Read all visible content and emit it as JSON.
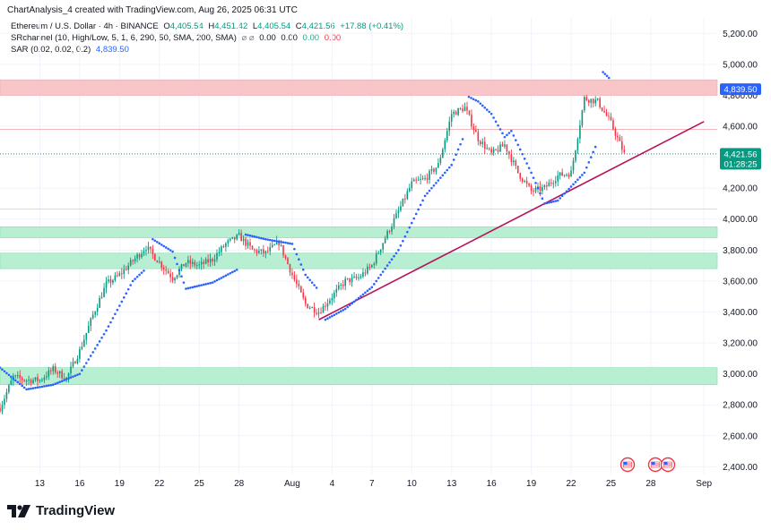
{
  "header": {
    "credit": "ChartAnalysis_4 created with TradingView.com, Aug 26, 2025 06:31 UTC",
    "symbol": "Ethereum / U.S. Dollar · 4h · BINANCE",
    "ohlc": {
      "o_label": "O",
      "o_value": "4,405.54",
      "h_label": "H",
      "h_value": "4,451.42",
      "l_label": "L",
      "l_value": "4,405.54",
      "c_label": "C",
      "c_value": "4,421.56",
      "change": "+17.88 (+0.41%)"
    },
    "indicators": [
      {
        "name": "SRchannel (10, High/Low, 5, 1, 6, 290, 50, SMA, 200, SMA)",
        "icon": "⌀ ⌀",
        "values": [
          "0.00",
          "0.00",
          "0.00",
          "0.00"
        ],
        "colors": [
          "#131722",
          "#131722",
          "#22ab94",
          "#f23645"
        ]
      },
      {
        "name": "SAR (0.02, 0.02, 0.2)",
        "icon": "",
        "values": [
          "4,839.50"
        ],
        "colors": [
          "#2962ff"
        ]
      }
    ]
  },
  "colors": {
    "up": "#089981",
    "down": "#f23645",
    "sar": "#2962ff",
    "trendline": "#b5145b",
    "resistance_zone": "#f8c6c8",
    "support_zone": "#b8efd3"
  },
  "price_tags": [
    {
      "value": 4839.5,
      "label": "4,839.50",
      "color": "#2962ff"
    },
    {
      "value": 4421.56,
      "label": "4,421.56",
      "sub": "01:28:25",
      "color": "#089981"
    }
  ],
  "logo": {
    "text": "TradingView"
  },
  "chart_data": {
    "type": "candlestick",
    "title": "Ethereum / U.S. Dollar · 4h · BINANCE",
    "ylim": [
      2350,
      5300
    ],
    "y_ticks": [
      {
        "value": 2400,
        "label": "2,400.00"
      },
      {
        "value": 2600,
        "label": "2,600.00"
      },
      {
        "value": 2800,
        "label": "2,800.00"
      },
      {
        "value": 3000,
        "label": "3,000.00"
      },
      {
        "value": 3200,
        "label": "3,200.00"
      },
      {
        "value": 3400,
        "label": "3,400.00"
      },
      {
        "value": 3600,
        "label": "3,600.00"
      },
      {
        "value": 3800,
        "label": "3,800.00"
      },
      {
        "value": 4000,
        "label": "4,000.00"
      },
      {
        "value": 4200,
        "label": "4,200.00"
      },
      {
        "value": 4400,
        "label": "4,400.00"
      },
      {
        "value": 4600,
        "label": "4,600.00"
      },
      {
        "value": 4800,
        "label": "4,800.00"
      },
      {
        "value": 5000,
        "label": "5,000.00"
      },
      {
        "value": 5200,
        "label": "5,200.00"
      }
    ],
    "x_range": [
      "2025-07-10",
      "2025-09-02"
    ],
    "x_ticks": [
      {
        "date": "2025-07-13",
        "label": "13"
      },
      {
        "date": "2025-07-16",
        "label": "16"
      },
      {
        "date": "2025-07-19",
        "label": "19"
      },
      {
        "date": "2025-07-22",
        "label": "22"
      },
      {
        "date": "2025-07-25",
        "label": "25"
      },
      {
        "date": "2025-07-28",
        "label": "28"
      },
      {
        "date": "2025-08-01",
        "label": "Aug"
      },
      {
        "date": "2025-08-04",
        "label": "4"
      },
      {
        "date": "2025-08-07",
        "label": "7"
      },
      {
        "date": "2025-08-10",
        "label": "10"
      },
      {
        "date": "2025-08-13",
        "label": "13"
      },
      {
        "date": "2025-08-16",
        "label": "16"
      },
      {
        "date": "2025-08-19",
        "label": "19"
      },
      {
        "date": "2025-08-22",
        "label": "22"
      },
      {
        "date": "2025-08-25",
        "label": "25"
      },
      {
        "date": "2025-08-28",
        "label": "28"
      },
      {
        "date": "2025-09-01",
        "label": "Sep"
      }
    ],
    "zones": [
      {
        "kind": "resistance",
        "from": 4800,
        "to": 4900
      },
      {
        "kind": "support",
        "from": 3880,
        "to": 3950
      },
      {
        "kind": "support",
        "from": 3680,
        "to": 3780
      },
      {
        "kind": "support",
        "from": 2930,
        "to": 3040
      }
    ],
    "levels": [
      {
        "kind": "resistance",
        "value": 4580
      },
      {
        "kind": "support",
        "value": 4065
      },
      {
        "kind": "current_price",
        "value": 4421.56
      }
    ],
    "trendline": {
      "from": {
        "date": "2025-08-03",
        "price": 3350
      },
      "to": {
        "date": "2025-09-01",
        "price": 4630
      }
    },
    "price_path": [
      {
        "date": "2025-07-10",
        "price": 2780
      },
      {
        "date": "2025-07-11",
        "price": 2980
      },
      {
        "date": "2025-07-12",
        "price": 2960
      },
      {
        "date": "2025-07-13",
        "price": 2960
      },
      {
        "date": "2025-07-14",
        "price": 3030
      },
      {
        "date": "2025-07-15",
        "price": 2970
      },
      {
        "date": "2025-07-16",
        "price": 3150
      },
      {
        "date": "2025-07-17",
        "price": 3380
      },
      {
        "date": "2025-07-18",
        "price": 3580
      },
      {
        "date": "2025-07-19",
        "price": 3640
      },
      {
        "date": "2025-07-20",
        "price": 3730
      },
      {
        "date": "2025-07-21",
        "price": 3820
      },
      {
        "date": "2025-07-22",
        "price": 3720
      },
      {
        "date": "2025-07-23",
        "price": 3620
      },
      {
        "date": "2025-07-24",
        "price": 3720
      },
      {
        "date": "2025-07-25",
        "price": 3700
      },
      {
        "date": "2025-07-26",
        "price": 3740
      },
      {
        "date": "2025-07-27",
        "price": 3840
      },
      {
        "date": "2025-07-28",
        "price": 3890
      },
      {
        "date": "2025-07-29",
        "price": 3800
      },
      {
        "date": "2025-07-30",
        "price": 3780
      },
      {
        "date": "2025-07-31",
        "price": 3850
      },
      {
        "date": "2025-08-01",
        "price": 3640
      },
      {
        "date": "2025-08-02",
        "price": 3450
      },
      {
        "date": "2025-08-03",
        "price": 3400
      },
      {
        "date": "2025-08-04",
        "price": 3500
      },
      {
        "date": "2025-08-05",
        "price": 3600
      },
      {
        "date": "2025-08-06",
        "price": 3620
      },
      {
        "date": "2025-08-07",
        "price": 3700
      },
      {
        "date": "2025-08-08",
        "price": 3880
      },
      {
        "date": "2025-08-09",
        "price": 4050
      },
      {
        "date": "2025-08-10",
        "price": 4230
      },
      {
        "date": "2025-08-11",
        "price": 4260
      },
      {
        "date": "2025-08-12",
        "price": 4350
      },
      {
        "date": "2025-08-13",
        "price": 4680
      },
      {
        "date": "2025-08-14",
        "price": 4720
      },
      {
        "date": "2025-08-15",
        "price": 4520
      },
      {
        "date": "2025-08-16",
        "price": 4420
      },
      {
        "date": "2025-08-17",
        "price": 4480
      },
      {
        "date": "2025-08-18",
        "price": 4300
      },
      {
        "date": "2025-08-19",
        "price": 4180
      },
      {
        "date": "2025-08-20",
        "price": 4200
      },
      {
        "date": "2025-08-21",
        "price": 4280
      },
      {
        "date": "2025-08-22",
        "price": 4300
      },
      {
        "date": "2025-08-23",
        "price": 4780
      },
      {
        "date": "2025-08-24",
        "price": 4760
      },
      {
        "date": "2025-08-25",
        "price": 4620
      },
      {
        "date": "2025-08-26",
        "price": 4421.56
      }
    ],
    "sar_path": [
      {
        "date": "2025-07-10",
        "price": 3040
      },
      {
        "date": "2025-07-12",
        "price": 2900
      },
      {
        "date": "2025-07-14",
        "price": 2930
      },
      {
        "date": "2025-07-16",
        "price": 3000
      },
      {
        "date": "2025-07-18",
        "price": 3280
      },
      {
        "date": "2025-07-20",
        "price": 3600
      },
      {
        "date": "2025-07-21",
        "price": 3680
      },
      {
        "date": "2025-07-21.5",
        "price": 3870
      },
      {
        "date": "2025-07-23",
        "price": 3790
      },
      {
        "date": "2025-07-24",
        "price": 3550
      },
      {
        "date": "2025-07-26",
        "price": 3590
      },
      {
        "date": "2025-07-28",
        "price": 3680
      },
      {
        "date": "2025-07-28.5",
        "price": 3900
      },
      {
        "date": "2025-07-30",
        "price": 3870
      },
      {
        "date": "2025-08-01",
        "price": 3840
      },
      {
        "date": "2025-08-02",
        "price": 3640
      },
      {
        "date": "2025-08-03",
        "price": 3540
      },
      {
        "date": "2025-08-03.5",
        "price": 3350
      },
      {
        "date": "2025-08-05",
        "price": 3420
      },
      {
        "date": "2025-08-07",
        "price": 3560
      },
      {
        "date": "2025-08-09",
        "price": 3800
      },
      {
        "date": "2025-08-11",
        "price": 4150
      },
      {
        "date": "2025-08-13",
        "price": 4350
      },
      {
        "date": "2025-08-14",
        "price": 4550
      },
      {
        "date": "2025-08-14.3",
        "price": 4790
      },
      {
        "date": "2025-08-15",
        "price": 4760
      },
      {
        "date": "2025-08-16",
        "price": 4680
      },
      {
        "date": "2025-08-17",
        "price": 4530
      },
      {
        "date": "2025-08-17.5",
        "price": 4570
      },
      {
        "date": "2025-08-19",
        "price": 4300
      },
      {
        "date": "2025-08-20",
        "price": 4100
      },
      {
        "date": "2025-08-21",
        "price": 4120
      },
      {
        "date": "2025-08-23",
        "price": 4300
      },
      {
        "date": "2025-08-24",
        "price": 4500
      },
      {
        "date": "2025-08-24.4",
        "price": 4950
      },
      {
        "date": "2025-08-25",
        "price": 4900
      }
    ]
  }
}
